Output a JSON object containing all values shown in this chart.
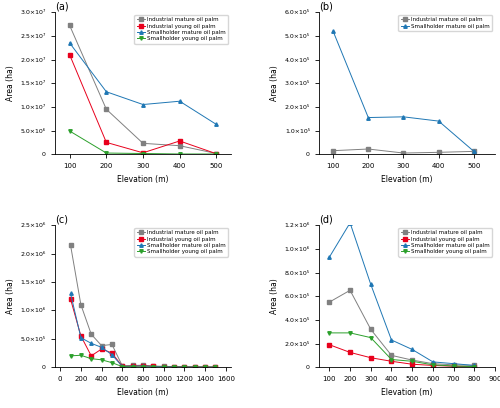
{
  "a": {
    "title": "(a)",
    "xlabel": "Elevation (m)",
    "ylabel": "Area (ha)",
    "series": [
      {
        "label": "Industrial mature oil palm",
        "color": "#808080",
        "marker": "s",
        "x": [
          100,
          200,
          300,
          400,
          500
        ],
        "y": [
          27200000.0,
          9500000.0,
          2300000.0,
          1800000.0,
          150000.0
        ]
      },
      {
        "label": "Industrial young oil palm",
        "color": "#e8001c",
        "marker": "s",
        "x": [
          100,
          200,
          300,
          400,
          500
        ],
        "y": [
          21000000.0,
          2500000.0,
          300000.0,
          2800000.0,
          100000.0
        ]
      },
      {
        "label": "Smallholder mature oil palm",
        "color": "#1f77b4",
        "marker": "^",
        "x": [
          100,
          200,
          300,
          400,
          500
        ],
        "y": [
          23500000.0,
          13200000.0,
          10500000.0,
          11200000.0,
          6300000.0
        ]
      },
      {
        "label": "Smallholder young oil palm",
        "color": "#2ca02c",
        "marker": "v",
        "x": [
          100,
          200,
          300,
          400,
          500
        ],
        "y": [
          4900000.0,
          250000.0,
          150000.0,
          50000.0,
          50000.0
        ]
      }
    ],
    "ylim": [
      0,
      30000000.0
    ],
    "ytick_vals": [
      0,
      5000000.0,
      10000000.0,
      15000000.0,
      20000000.0,
      25000000.0,
      30000000.0
    ],
    "ytick_labels": [
      "0",
      "5.0×10⁶",
      "1.0×10⁷",
      "1.5×10⁷",
      "2.0×10⁷",
      "2.5×10⁷",
      "3.0×10⁷"
    ],
    "xticks": [
      100,
      200,
      300,
      400,
      500
    ],
    "xlim": [
      60,
      540
    ]
  },
  "b": {
    "title": "(b)",
    "xlabel": "Elevation (m)",
    "ylabel": "Area (ha)",
    "series": [
      {
        "label": "Industrial mature oil palm",
        "color": "#808080",
        "marker": "s",
        "x": [
          100,
          200,
          300,
          400,
          500
        ],
        "y": [
          15000.0,
          22000.0,
          5000.0,
          8000.0,
          12000.0
        ]
      },
      {
        "label": "Smallholder mature oil palm",
        "color": "#1f77b4",
        "marker": "^",
        "x": [
          100,
          200,
          300,
          400,
          500
        ],
        "y": [
          520000.0,
          155000.0,
          158000.0,
          140000.0,
          12000.0
        ]
      }
    ],
    "ylim": [
      0,
      600000.0
    ],
    "ytick_vals": [
      0,
      100000.0,
      200000.0,
      300000.0,
      400000.0,
      500000.0,
      600000.0
    ],
    "ytick_labels": [
      "0",
      "1.0×10⁵",
      "2.0×10⁵",
      "3.0×10⁵",
      "4.0×10⁵",
      "5.0×10⁵",
      "6.0×10⁵"
    ],
    "xticks": [
      100,
      200,
      300,
      400,
      500
    ],
    "xlim": [
      60,
      560
    ]
  },
  "c": {
    "title": "(c)",
    "xlabel": "Elevation (m)",
    "ylabel": "Area (ha)",
    "series": [
      {
        "label": "Industrial mature oil palm",
        "color": "#808080",
        "marker": "s",
        "x": [
          100,
          200,
          300,
          400,
          500,
          600,
          700,
          800,
          900,
          1000,
          1100,
          1200,
          1300,
          1400,
          1500
        ],
        "y": [
          2150000.0,
          1100000.0,
          580000.0,
          380000.0,
          400000.0,
          25000.0,
          30000.0,
          35000.0,
          20000.0,
          15000.0,
          10000.0,
          8000.0,
          5000.0,
          3000.0,
          2000.0
        ]
      },
      {
        "label": "Industrial young oil palm",
        "color": "#e8001c",
        "marker": "s",
        "x": [
          100,
          200,
          300,
          400,
          500,
          600,
          700,
          800,
          900,
          1000,
          1100,
          1200,
          1300,
          1400,
          1500
        ],
        "y": [
          1200000.0,
          550000.0,
          200000.0,
          320000.0,
          250000.0,
          15000.0,
          20000.0,
          25000.0,
          15000.0,
          10000.0,
          8000.0,
          5000.0,
          3000.0,
          2000.0,
          1000.0
        ]
      },
      {
        "label": "Smallholder mature oil palm",
        "color": "#1f77b4",
        "marker": "^",
        "x": [
          100,
          200,
          300,
          400,
          500,
          600,
          700,
          800,
          900,
          1000,
          1100,
          1200,
          1300,
          1400,
          1500
        ],
        "y": [
          1300000.0,
          520000.0,
          420000.0,
          350000.0,
          220000.0,
          15000.0,
          18000.0,
          22000.0,
          12000.0,
          8000.0,
          5000.0,
          3000.0,
          2000.0,
          1000.0,
          500.0
        ]
      },
      {
        "label": "Smallholder young oil palm",
        "color": "#2ca02c",
        "marker": "v",
        "x": [
          100,
          200,
          300,
          400,
          500,
          600,
          700,
          800,
          900,
          1000,
          1100,
          1200,
          1300,
          1400,
          1500
        ],
        "y": [
          200000.0,
          210000.0,
          150000.0,
          130000.0,
          80000.0,
          10000.0,
          5000.0,
          3000.0,
          2000.0,
          1000.0,
          500.0,
          300.0,
          200.0,
          100.0,
          50.0
        ]
      }
    ],
    "ylim": [
      0,
      2500000.0
    ],
    "ytick_vals": [
      0,
      500000.0,
      1000000.0,
      1500000.0,
      2000000.0,
      2500000.0
    ],
    "ytick_labels": [
      "0",
      "5.0×10⁵",
      "1.0×10⁶",
      "1.5×10⁶",
      "2.0×10⁶",
      "2.5×10⁶"
    ],
    "xticks": [
      0,
      200,
      400,
      600,
      800,
      1000,
      1200,
      1400,
      1600
    ],
    "xlim": [
      -50,
      1650
    ]
  },
  "d": {
    "title": "(d)",
    "xlabel": "Elevation (m)",
    "ylabel": "Area (ha)",
    "series": [
      {
        "label": "Industrial mature oil palm",
        "color": "#808080",
        "marker": "s",
        "x": [
          100,
          200,
          300,
          400,
          500,
          600,
          700,
          800
        ],
        "y": [
          550000.0,
          650000.0,
          320000.0,
          100000.0,
          60000.0,
          30000.0,
          20000.0,
          15000.0
        ]
      },
      {
        "label": "Industrial young oil palm",
        "color": "#e8001c",
        "marker": "s",
        "x": [
          100,
          200,
          300,
          400,
          500,
          600,
          700,
          800
        ],
        "y": [
          190000.0,
          125000.0,
          80000.0,
          50000.0,
          25000.0,
          15000.0,
          8000.0,
          4000.0
        ]
      },
      {
        "label": "Smallholder mature oil palm",
        "color": "#1f77b4",
        "marker": "^",
        "x": [
          100,
          200,
          300,
          400,
          500,
          600,
          700,
          800
        ],
        "y": [
          930000.0,
          1220000.0,
          700000.0,
          230000.0,
          150000.0,
          45000.0,
          30000.0,
          15000.0
        ]
      },
      {
        "label": "Smallholder young oil palm",
        "color": "#2ca02c",
        "marker": "v",
        "x": [
          100,
          200,
          300,
          400,
          500,
          600,
          700,
          800
        ],
        "y": [
          290000.0,
          290000.0,
          250000.0,
          65000.0,
          50000.0,
          20000.0,
          10000.0,
          5000.0
        ]
      }
    ],
    "ylim": [
      0,
      1200000.0
    ],
    "ytick_vals": [
      0,
      200000.0,
      400000.0,
      600000.0,
      800000.0,
      1000000.0,
      1200000.0
    ],
    "ytick_labels": [
      "0",
      "2.0×10⁵",
      "4.0×10⁵",
      "6.0×10⁵",
      "8.0×10⁵",
      "1.0×10⁶",
      "1.2×10⁶"
    ],
    "xticks": [
      100,
      200,
      300,
      400,
      500,
      600,
      700,
      800,
      900
    ],
    "xlim": [
      50,
      900
    ]
  }
}
